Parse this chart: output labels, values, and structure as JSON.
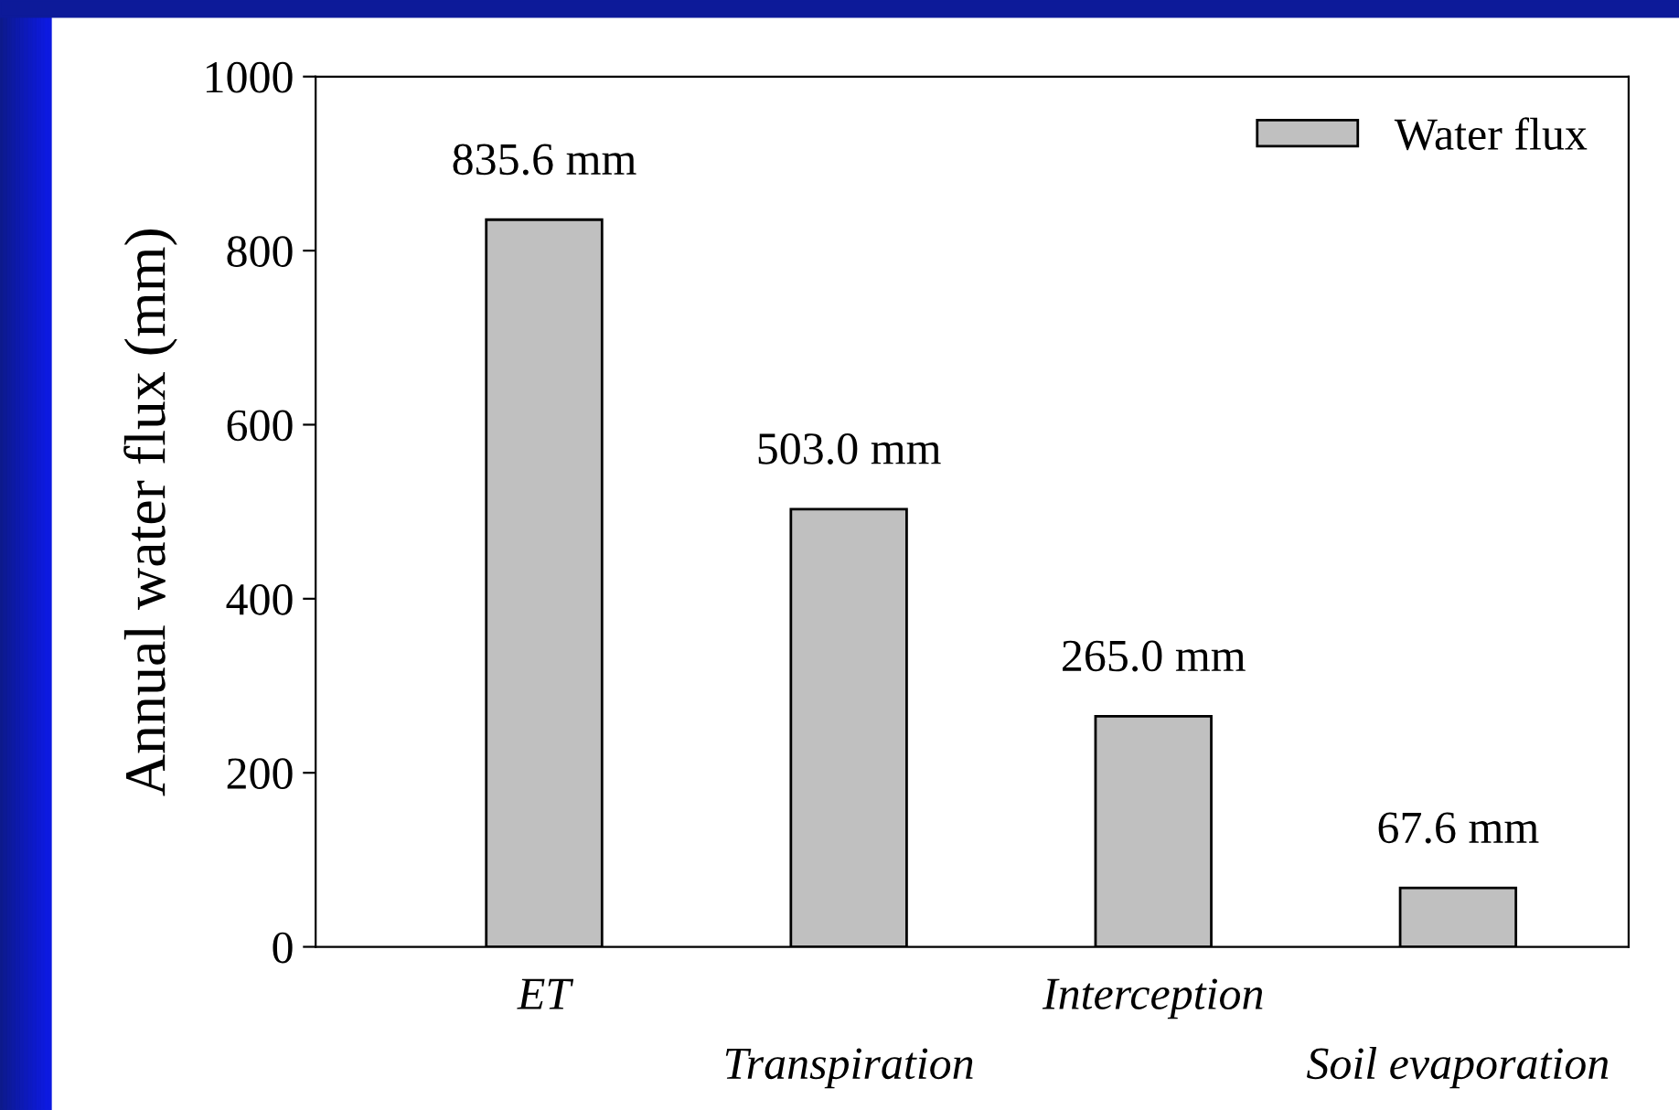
{
  "chart_data": {
    "type": "bar",
    "ylabel": "Annual water flux (mm)",
    "categories": [
      "ET",
      "Transpiration",
      "Interception",
      "Soil evaporation"
    ],
    "series": [
      {
        "name": "Water flux",
        "color": "#c0c0c0",
        "values": [
          835.6,
          503.0,
          265.0,
          67.6
        ],
        "value_labels": [
          "835.6 mm",
          "503.0 mm",
          "265.0 mm",
          "67.6 mm"
        ]
      }
    ],
    "ylim": [
      0,
      1000
    ],
    "yticks": [
      0,
      200,
      400,
      600,
      800,
      1000
    ],
    "grid": false,
    "legend": "top right"
  }
}
